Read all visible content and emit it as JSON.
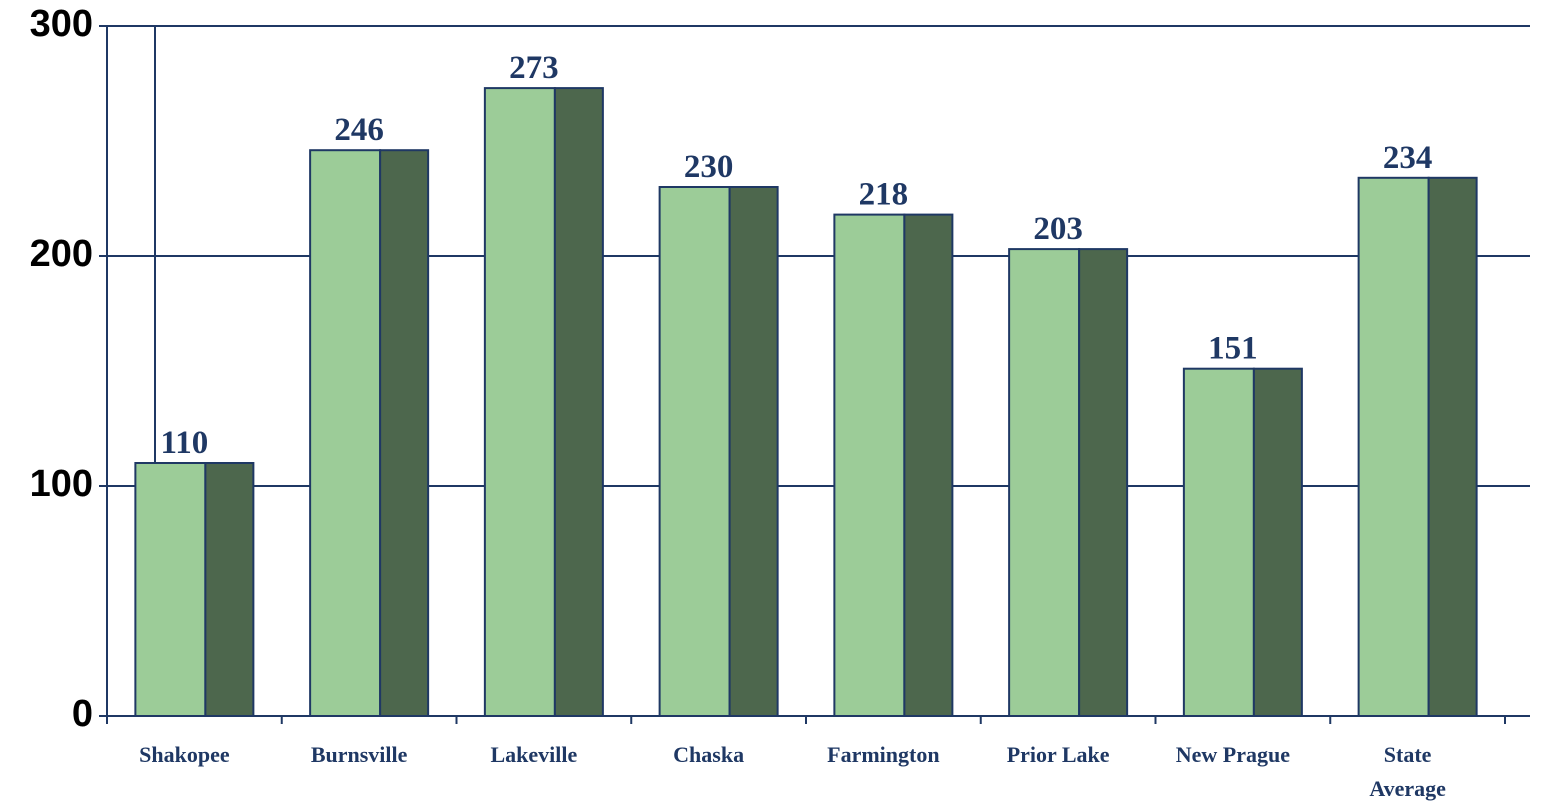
{
  "chart_data": {
    "type": "bar",
    "categories": [
      "Shakopee",
      "Burnsville",
      "Lakeville",
      "Chaska",
      "Farmington",
      "Prior Lake",
      "New Prague",
      "State Average"
    ],
    "values": [
      110,
      246,
      273,
      230,
      218,
      203,
      151,
      234
    ],
    "color": "#9ccc98",
    "side_color": "#4d674d",
    "ylim": [
      0,
      300
    ],
    "yticks": [
      0,
      100,
      200,
      300
    ],
    "grid": true
  }
}
